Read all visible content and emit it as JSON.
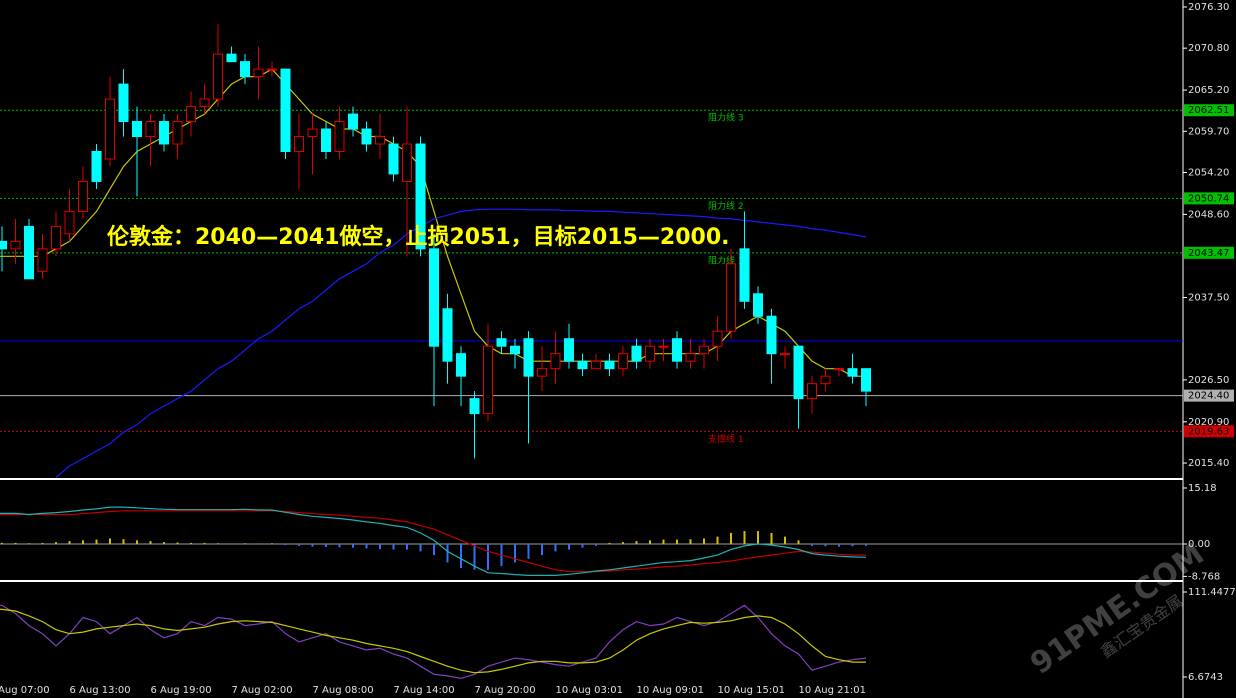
{
  "chart_data": [
    {
      "type": "candlestick",
      "annotation": "伦敦金：2040—2041做空，止损2051，目标2015—2000.",
      "categories": [
        "6 Aug 07:00",
        null,
        null,
        null,
        null,
        null,
        "6 Aug 13:00",
        null,
        null,
        null,
        null,
        null,
        "6 Aug 19:00",
        null,
        null,
        null,
        null,
        null,
        "7 Aug 02:00",
        null,
        null,
        null,
        null,
        null,
        "7 Aug 08:00",
        null,
        null,
        null,
        null,
        null,
        "7 Aug 14:00",
        null,
        null,
        null,
        null,
        null,
        "7 Aug 20:00",
        null,
        null,
        null,
        null,
        null,
        "10 Aug 03:01",
        null,
        null,
        null,
        null,
        null,
        "10 Aug 09:01",
        null,
        null,
        null,
        null,
        null,
        "10 Aug 15:01",
        null,
        null,
        null,
        null,
        null,
        "10 Aug 21:01",
        null,
        null,
        null,
        null,
        null
      ],
      "open": [
        2044,
        2045,
        2044,
        2047,
        2041,
        2044,
        2046,
        2049,
        2057,
        2056,
        2066,
        2061,
        2059,
        2061,
        2058,
        2061,
        2063,
        2064,
        2070,
        2069,
        2067,
        2068,
        2068,
        2057,
        2059,
        2060,
        2057,
        2062,
        2060,
        2058,
        2058,
        2053,
        2058,
        2044,
        2036,
        2030,
        2024,
        2022,
        2032,
        2031,
        2032,
        2027,
        2028,
        2032,
        2029,
        2028,
        2029,
        2028,
        2031,
        2029,
        2031,
        2032,
        2029,
        2030,
        2031,
        2033,
        2044,
        2038,
        2035,
        2030,
        2031,
        2024,
        2026,
        2028,
        2028,
        2028
      ],
      "high": [
        2046,
        2047,
        2048,
        2048,
        2046,
        2049,
        2052,
        2055,
        2058,
        2067,
        2068,
        2063,
        2062,
        2062,
        2062,
        2065,
        2066,
        2074,
        2071,
        2070,
        2071,
        2069,
        2068,
        2062,
        2062,
        2061,
        2063,
        2063,
        2061,
        2062,
        2059,
        2063,
        2059,
        2046,
        2038,
        2031,
        2025,
        2034,
        2033,
        2032,
        2033,
        2031,
        2033,
        2034,
        2030,
        2030,
        2030,
        2031,
        2032,
        2032,
        2032,
        2033,
        2032,
        2032,
        2035,
        2044,
        2049,
        2039,
        2036,
        2031,
        2031,
        2027,
        2028,
        2028,
        2030,
        2028
      ],
      "low": [
        2040,
        2041,
        2042,
        2040,
        2040,
        2043,
        2045,
        2048,
        2052,
        2055,
        2059,
        2051,
        2055,
        2057,
        2056,
        2059,
        2062,
        2063,
        2069,
        2066,
        2064,
        2067,
        2056,
        2052,
        2054,
        2056,
        2056,
        2059,
        2057,
        2056,
        2053,
        2043,
        2043,
        2023,
        2026,
        2023,
        2016,
        2021,
        2030,
        2028,
        2018,
        2025,
        2026,
        2028,
        2027,
        2028,
        2027,
        2027,
        2028,
        2028,
        2029,
        2028,
        2028,
        2028,
        2029,
        2032,
        2036,
        2034,
        2026,
        2028,
        2020,
        2022,
        2025,
        2027,
        2026,
        2023
      ],
      "close": [
        2045,
        2044,
        2045,
        2040,
        2044,
        2047,
        2049,
        2053,
        2053,
        2064,
        2061,
        2059,
        2061,
        2058,
        2061,
        2063,
        2064,
        2070,
        2069,
        2067,
        2068,
        2068,
        2057,
        2059,
        2060,
        2057,
        2061,
        2060,
        2058,
        2059,
        2054,
        2058,
        2044,
        2031,
        2029,
        2027,
        2022,
        2031,
        2031,
        2030,
        2027,
        2028,
        2030,
        2029,
        2028,
        2029,
        2028,
        2030,
        2029,
        2031,
        2031,
        2029,
        2030,
        2031,
        2033,
        2042,
        2037,
        2035,
        2030,
        2030,
        2024,
        2026,
        2027,
        2028,
        2027,
        2025
      ],
      "up_color": "#e00000",
      "down_color": "#00ffff",
      "lines": [
        {
          "color": "#c8c800",
          "values": [
            2043,
            2043,
            2043,
            2043,
            2043,
            2044,
            2045,
            2047,
            2049,
            2052,
            2055,
            2057,
            2058,
            2059,
            2060,
            2061,
            2062,
            2064,
            2066,
            2067,
            2067,
            2068,
            2066,
            2064,
            2062,
            2061,
            2060,
            2060,
            2059,
            2059,
            2058,
            2057,
            2055,
            2049,
            2043,
            2038,
            2033,
            2031,
            2030,
            2030,
            2029,
            2029,
            2029,
            2029,
            2029,
            2029,
            2029,
            2029,
            2029,
            2030,
            2030,
            2030,
            2030,
            2030,
            2031,
            2033,
            2034,
            2035,
            2034,
            2033,
            2031,
            2029,
            2028,
            2028,
            2027,
            2027
          ]
        },
        {
          "color": "#1a1aff",
          "values": [
            null,
            null,
            null,
            null,
            null,
            2013.5,
            2015,
            2016,
            2017,
            2018,
            2019.5,
            2020.5,
            2022,
            2023,
            2024,
            2025,
            2026.5,
            2028,
            2029,
            2030.5,
            2032,
            2033,
            2034.5,
            2036,
            2037,
            2038.5,
            2040,
            2041,
            2042,
            2043.5,
            2044.5,
            2046,
            2047,
            2048,
            2048.5,
            2049,
            2049.2,
            2049.3,
            2049.3,
            2049.3,
            2049.2,
            2049.2,
            2049.2,
            2049.1,
            2049.1,
            2049,
            2049,
            2048.9,
            2048.8,
            2048.7,
            2048.6,
            2048.5,
            2048.4,
            2048.3,
            2048.1,
            2048,
            2047.8,
            2047.6,
            2047.4,
            2047.2,
            2047,
            2046.7,
            2046.5,
            2046.2,
            2045.9,
            2045.6
          ]
        }
      ],
      "levels": [
        {
          "value": 2062.51,
          "label": "2062.51",
          "text": "阻力线 3",
          "color": "#00c000"
        },
        {
          "value": 2050.74,
          "label": "2050.74",
          "text": "阻力线 2",
          "color": "#00c000"
        },
        {
          "value": 2043.47,
          "label": "2043.47",
          "text": "阻力线 1",
          "color": "#00c000"
        },
        {
          "value": 2031.7,
          "color": "#0000ff"
        },
        {
          "value": 2024.4,
          "label": "2024.40",
          "color": "#b0b0b0"
        },
        {
          "value": 2019.63,
          "label": "2019.63",
          "text": "支撑线 1",
          "color": "#d00000"
        }
      ],
      "ylim": [
        2013.4,
        2077.23
      ],
      "yticks": [
        {
          "value": 2076.3,
          "label": "2076.30"
        },
        {
          "value": 2070.8,
          "label": "2070.80"
        },
        {
          "value": 2065.2,
          "label": "2065.20"
        },
        {
          "value": 2059.7,
          "label": "2059.70"
        },
        {
          "value": 2054.2,
          "label": "2054.20"
        },
        {
          "value": 2048.6,
          "label": "2048.60"
        },
        {
          "value": 2037.5,
          "label": "2037.50"
        },
        {
          "value": 2026.5,
          "label": "2026.50"
        },
        {
          "value": 2020.9,
          "label": "2020.90"
        },
        {
          "value": 2015.4,
          "label": "2015.40"
        }
      ]
    },
    {
      "type": "macd",
      "histogram": [
        0.3,
        0.3,
        0.3,
        0.2,
        0.3,
        0.5,
        0.8,
        1,
        1.2,
        1.5,
        1.3,
        1,
        0.8,
        0.5,
        0.4,
        0.3,
        0.3,
        0.2,
        0.1,
        0.2,
        0.1,
        0.2,
        -0.3,
        -0.5,
        -0.7,
        -0.8,
        -0.9,
        -1,
        -1.2,
        -1.4,
        -1.5,
        -1.5,
        -2,
        -3,
        -5,
        -6.5,
        -7,
        -7,
        -6,
        -5,
        -4,
        -3,
        -2,
        -1.5,
        -1,
        -0.5,
        0.3,
        0.5,
        0.8,
        1,
        1.2,
        1.2,
        1.3,
        1.5,
        2,
        3,
        3.5,
        3.5,
        3,
        2,
        1,
        -0.5,
        -0.6,
        -0.7,
        -0.6,
        -0.5
      ],
      "pos_color": "#d4c000",
      "neg_color": "#3070ff",
      "lines": [
        {
          "color": "#c00000",
          "values": [
            8,
            8,
            8,
            8,
            8,
            8,
            8,
            8.2,
            8.5,
            8.8,
            9,
            9,
            9,
            9,
            9,
            9,
            9,
            9,
            9,
            9,
            9,
            9,
            8.8,
            8.5,
            8.2,
            8,
            7.8,
            7.5,
            7.2,
            7,
            6.5,
            6,
            5,
            4,
            2.5,
            1,
            -0.5,
            -2,
            -3,
            -4,
            -5,
            -6,
            -7,
            -7.5,
            -7.5,
            -7.5,
            -7.3,
            -7,
            -6.8,
            -6.5,
            -6.2,
            -6,
            -5.7,
            -5.3,
            -5,
            -4.6,
            -4,
            -3.5,
            -3,
            -2.5,
            -2,
            -2.2,
            -2.5,
            -2.8,
            -3,
            -3
          ]
        },
        {
          "color": "#20b0b0",
          "values": [
            8.3,
            8.3,
            8.3,
            8,
            8.3,
            8.5,
            8.8,
            9.2,
            9.5,
            10,
            10,
            9.8,
            9.6,
            9.4,
            9.3,
            9.3,
            9.3,
            9.3,
            9.3,
            9.4,
            9.2,
            9.2,
            8.6,
            8,
            7.5,
            7.2,
            6.9,
            6.5,
            6,
            5.6,
            5,
            4.5,
            3,
            1,
            -2,
            -4,
            -6,
            -7.8,
            -8,
            -8.3,
            -8.5,
            -8.5,
            -8.5,
            -8.2,
            -7.8,
            -7.3,
            -7,
            -6.5,
            -6,
            -5.5,
            -5,
            -4.8,
            -4.5,
            -3.8,
            -3,
            -1.5,
            -0.5,
            0,
            -0.3,
            -0.8,
            -1.5,
            -2.6,
            -3,
            -3.3,
            -3.5,
            -3.6
          ]
        }
      ],
      "ylim": [
        -9.21,
        17.07
      ],
      "yticks": [
        15.18,
        {
          "value": 0,
          "label": "0.00"
        },
        -8.768
      ]
    },
    {
      "type": "line",
      "lines": [
        {
          "color": "#8040c0",
          "values": [
            95,
            95,
            85,
            70,
            60,
            45,
            60,
            80,
            75,
            60,
            70,
            80,
            65,
            55,
            60,
            75,
            70,
            80,
            78,
            70,
            72,
            75,
            60,
            50,
            55,
            60,
            50,
            45,
            40,
            42,
            35,
            30,
            20,
            10,
            8,
            5,
            10,
            20,
            25,
            30,
            28,
            25,
            22,
            20,
            25,
            30,
            50,
            65,
            75,
            70,
            72,
            80,
            75,
            70,
            75,
            85,
            95,
            80,
            60,
            45,
            35,
            15,
            20,
            25,
            28,
            30
          ]
        },
        {
          "color": "#c8c800",
          "values": [
            90,
            90,
            88,
            82,
            75,
            65,
            60,
            62,
            66,
            68,
            70,
            72,
            70,
            66,
            64,
            66,
            68,
            72,
            75,
            76,
            75,
            74,
            70,
            66,
            62,
            58,
            55,
            52,
            48,
            45,
            42,
            38,
            32,
            26,
            20,
            15,
            12,
            13,
            16,
            20,
            24,
            26,
            26,
            24,
            24,
            25,
            30,
            40,
            52,
            60,
            66,
            70,
            74,
            73,
            74,
            76,
            80,
            82,
            80,
            72,
            60,
            45,
            32,
            28,
            25,
            25
          ]
        }
      ],
      "ylim": [
        -1.95,
        122.54
      ],
      "yticks": [
        111.4477,
        6.6743
      ]
    }
  ],
  "watermark": "91PME.COM",
  "watermark_sub": "鑫汇宝贵金属"
}
